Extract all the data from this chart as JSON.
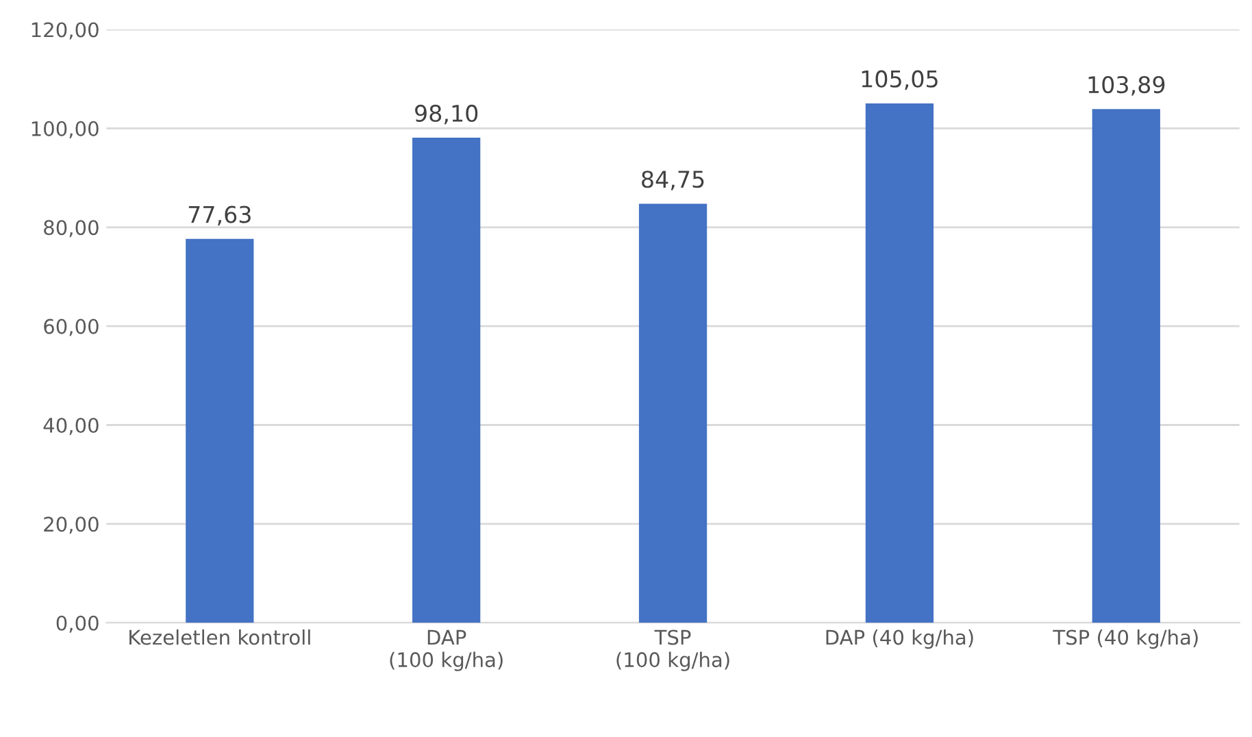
{
  "chart_data": {
    "type": "bar",
    "categories": [
      "Kezeletlen kontroll",
      "DAP\n(100 kg/ha)",
      "TSP\n(100 kg/ha)",
      "DAP (40 kg/ha)",
      "TSP (40 kg/ha)"
    ],
    "values": [
      77.63,
      98.1,
      84.75,
      105.05,
      103.89
    ],
    "value_labels": [
      "77,63",
      "98,10",
      "84,75",
      "105,05",
      "103,89"
    ],
    "color": "#4472c4",
    "ylim": [
      0,
      120
    ],
    "yticks": [
      {
        "value": 0,
        "label": "0,00"
      },
      {
        "value": 20,
        "label": "20,00"
      },
      {
        "value": 40,
        "label": "40,00"
      },
      {
        "value": 60,
        "label": "60,00"
      },
      {
        "value": 80,
        "label": "80,00"
      },
      {
        "value": 100,
        "label": "100,00"
      },
      {
        "value": 120,
        "label": "120,00"
      }
    ],
    "grid": "y"
  }
}
